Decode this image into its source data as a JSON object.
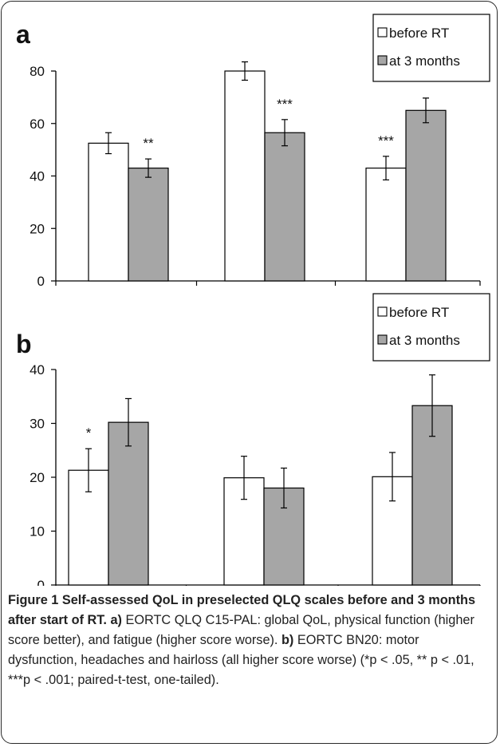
{
  "colors": {
    "before": "#ffffff",
    "after": "#a6a6a6",
    "stroke": "#000000"
  },
  "legend": {
    "before_label": "before RT",
    "after_label": "at 3 months"
  },
  "chart_data": [
    {
      "type": "bar",
      "panel": "a",
      "categories": [
        "Global",
        "Physical function",
        "Fatigue"
      ],
      "series": [
        {
          "name": "before RT",
          "values": [
            52.5,
            80,
            43
          ],
          "errors": [
            4,
            3.5,
            4.5
          ]
        },
        {
          "name": "at 3 months",
          "values": [
            43,
            56.5,
            65
          ],
          "errors": [
            3.5,
            5,
            4.7
          ]
        }
      ],
      "significance": [
        {
          "category": 0,
          "series": 1,
          "text": "**"
        },
        {
          "category": 1,
          "series": 1,
          "text": "***"
        },
        {
          "category": 2,
          "series": 0,
          "text": "***"
        }
      ],
      "ylim": [
        0,
        80
      ],
      "yticks": [
        "0",
        "20",
        "40",
        "60",
        "80"
      ],
      "legend_position": "top-right"
    },
    {
      "type": "bar",
      "panel": "b",
      "categories": [
        "Motor dysfunction",
        "Headache",
        "Hairloss"
      ],
      "series": [
        {
          "name": "before RT",
          "values": [
            21.3,
            19.9,
            20.1
          ],
          "errors": [
            4,
            4,
            4.5
          ]
        },
        {
          "name": "at 3 months",
          "values": [
            30.2,
            18,
            33.3
          ],
          "errors": [
            4.4,
            3.7,
            5.7
          ]
        }
      ],
      "significance": [
        {
          "category": 0,
          "series": 0,
          "text": "*"
        }
      ],
      "ylim": [
        0,
        40
      ],
      "yticks": [
        "0",
        "10",
        "20",
        "30",
        "40"
      ],
      "legend_position": "top-right"
    }
  ],
  "caption": {
    "title": "Figure 1 Self-assessed QoL in preselected QLQ scales before and 3 months after start of RT.",
    "a_label": "a)",
    "a_text": "EORTC QLQ C15-PAL: global QoL, physical function (higher score better), and fatigue (higher score worse).",
    "b_label": "b)",
    "b_text": "EORTC BN20: motor dysfunction, headaches and hairloss (all higher score worse) (*p < .05, ** p < .01, ***p < .001; paired-t-test, one-tailed)."
  }
}
